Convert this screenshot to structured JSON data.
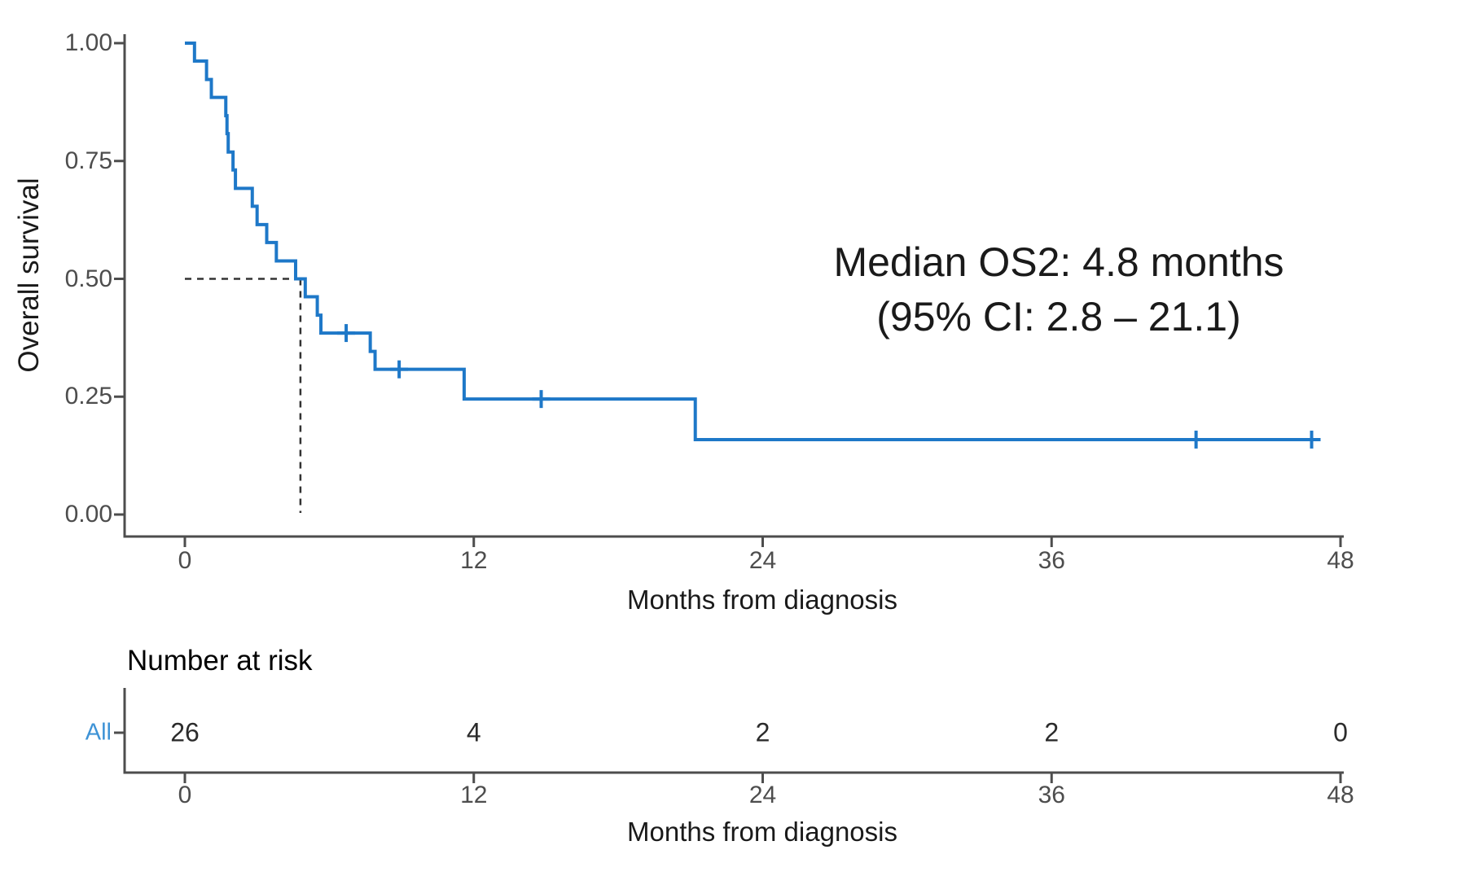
{
  "chart_data": {
    "type": "line",
    "subtype": "kaplan-meier-step",
    "title": "",
    "xlabel": "Months from diagnosis",
    "ylabel": "Overall survival",
    "xlim": [
      0,
      48
    ],
    "ylim": [
      0,
      1
    ],
    "xticks": [
      0,
      12,
      24,
      36,
      48
    ],
    "yticks": [
      {
        "v": 1.0,
        "label": "1.00"
      },
      {
        "v": 0.75,
        "label": "0.75"
      },
      {
        "v": 0.5,
        "label": "0.50"
      },
      {
        "v": 0.25,
        "label": "0.25"
      },
      {
        "v": 0.0,
        "label": "0.00"
      }
    ],
    "grid": false,
    "legend": "none",
    "series": [
      {
        "name": "All",
        "color": "#1E78C8",
        "steps": [
          [
            0,
            1.0
          ],
          [
            0.4,
            0.962
          ],
          [
            0.9,
            0.923
          ],
          [
            1.1,
            0.885
          ],
          [
            1.7,
            0.846
          ],
          [
            1.75,
            0.808
          ],
          [
            1.8,
            0.769
          ],
          [
            2.0,
            0.731
          ],
          [
            2.1,
            0.692
          ],
          [
            2.8,
            0.654
          ],
          [
            3.0,
            0.615
          ],
          [
            3.4,
            0.577
          ],
          [
            3.8,
            0.538
          ],
          [
            4.6,
            0.5
          ],
          [
            5.0,
            0.462
          ],
          [
            5.5,
            0.423
          ],
          [
            5.65,
            0.385
          ],
          [
            7.7,
            0.346
          ],
          [
            7.9,
            0.308
          ],
          [
            11.6,
            0.245
          ],
          [
            21.2,
            0.159
          ]
        ],
        "end_time": 47.0,
        "censor_marks": [
          [
            6.7,
            0.385
          ],
          [
            8.9,
            0.308
          ],
          [
            14.8,
            0.245
          ],
          [
            42.0,
            0.159
          ],
          [
            46.8,
            0.159
          ]
        ]
      }
    ],
    "median_reference": {
      "time": 4.8,
      "survival": 0.5,
      "dash_color": "#333333"
    },
    "annotation": {
      "line1": "Median OS2: 4.8 months",
      "line2": "(95% CI: 2.8 – 21.1)"
    },
    "axis_color": "#4d4d4d"
  },
  "risk_table": {
    "title": "Number at risk",
    "xlabel": "Months from diagnosis",
    "times": [
      0,
      12,
      24,
      36,
      48
    ],
    "groups": [
      {
        "label": "All",
        "color": "#3E93D6",
        "counts": [
          26,
          4,
          2,
          2,
          0
        ]
      }
    ]
  }
}
